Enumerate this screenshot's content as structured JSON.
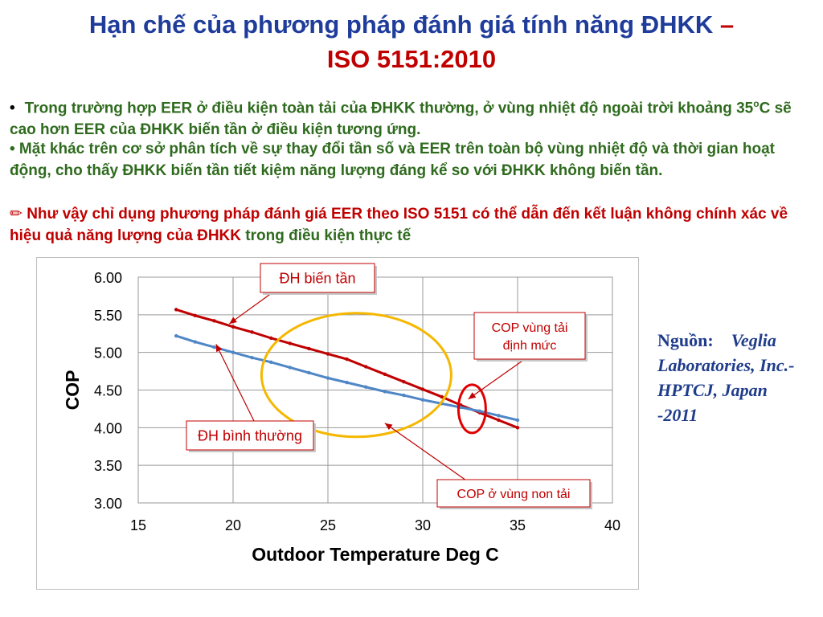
{
  "slide": {
    "title_line1": "Hạn chế của phương pháp đánh giá tính năng ĐHKK",
    "title_dash": "–",
    "title_line2": "ISO 5151:2010",
    "bullet1_marker": "•",
    "bullet1_text_a": "Trong trường hợp EER ở điều kiện toàn tải của ĐHKK thường, ở vùng nhiệt độ ngoài trời khoảng 35",
    "bullet1_sup": "o",
    "bullet1_text_b": "C sẽ cao hơn EER của ĐHKK biến tần ở điều kiện tương ứng.",
    "bullet2_text": "• Mặt khác trên cơ sở phân tích về sự thay đổi tần số và EER trên toàn bộ vùng nhiệt độ và thời gian hoạt động, cho thấy ĐHKK biến tần tiết kiệm năng lượng đáng kể so với ĐHKK không biến tần.",
    "bullet3_marker": "✏",
    "bullet3_text": " Như  vậy chỉ dụng phương pháp đánh giá EER theo  ISO 5151 có thể dẫn đến kết luận không chính xác về hiệu quả năng lượng của ĐHKK",
    "bullet3_tail": " trong điều kiện thực tế",
    "source_label": "Nguồn:",
    "source_body": "Veglia Laboratories, Inc.-HPTCJ, Japan -2011"
  },
  "chart_data": {
    "type": "line",
    "xlabel": "Outdoor Temperature   Deg C",
    "ylabel": "COP",
    "xlim": [
      15,
      40
    ],
    "ylim": [
      3.0,
      6.0
    ],
    "x_ticks": [
      15,
      20,
      25,
      30,
      35,
      40
    ],
    "y_ticks": [
      3.0,
      3.5,
      4.0,
      4.5,
      5.0,
      5.5,
      6.0
    ],
    "x_tick_labels": [
      "15",
      "20",
      "25",
      "30",
      "35",
      "40"
    ],
    "y_tick_labels": [
      "3.00",
      "3.50",
      "4.00",
      "4.50",
      "5.00",
      "5.50",
      "6.00"
    ],
    "grid": true,
    "series": [
      {
        "color": "#c00000",
        "x": [
          17,
          18,
          19,
          20,
          21,
          22,
          23,
          24,
          25,
          26,
          27,
          28,
          29,
          30,
          31,
          32,
          33,
          34,
          35
        ],
        "y": [
          5.57,
          5.49,
          5.42,
          5.34,
          5.27,
          5.19,
          5.12,
          5.05,
          4.98,
          4.91,
          4.81,
          4.71,
          4.61,
          4.51,
          4.41,
          4.3,
          4.2,
          4.1,
          4.0
        ]
      },
      {
        "color": "#4f86c6",
        "x": [
          17,
          18,
          19,
          20,
          21,
          22,
          23,
          24,
          25,
          26,
          27,
          28,
          29,
          30,
          31,
          32,
          33,
          34,
          35
        ],
        "y": [
          5.22,
          5.14,
          5.07,
          5.0,
          4.93,
          4.87,
          4.8,
          4.73,
          4.66,
          4.6,
          4.54,
          4.48,
          4.43,
          4.37,
          4.32,
          4.27,
          4.22,
          4.16,
          4.1
        ]
      }
    ],
    "annotations": [
      {
        "text": "ĐH biến tần",
        "color": "#c00000"
      },
      {
        "text": "ĐH bình thường",
        "color": "#c00000"
      },
      {
        "text": "COP vùng  tải định mức",
        "color": "#c00000"
      },
      {
        "text": "COP ở vùng non tải",
        "color": "#c00000"
      }
    ],
    "highlights": [
      {
        "shape": "ellipse",
        "color": "#f5b700",
        "center": [
          26.5,
          4.7
        ]
      },
      {
        "shape": "ellipse",
        "color": "#e00000",
        "center": [
          32.6,
          4.25
        ]
      }
    ]
  }
}
